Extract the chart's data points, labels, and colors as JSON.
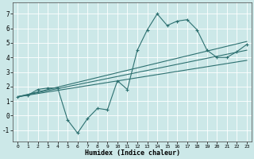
{
  "xlabel": "Humidex (Indice chaleur)",
  "bg_color": "#cce8e8",
  "grid_color": "#ffffff",
  "line_color": "#2d7070",
  "xlim": [
    -0.5,
    23.5
  ],
  "ylim": [
    -1.8,
    7.8
  ],
  "xticks": [
    0,
    1,
    2,
    3,
    4,
    5,
    6,
    7,
    8,
    9,
    10,
    11,
    12,
    13,
    14,
    15,
    16,
    17,
    18,
    19,
    20,
    21,
    22,
    23
  ],
  "yticks": [
    -1,
    0,
    1,
    2,
    3,
    4,
    5,
    6,
    7
  ],
  "line1_x": [
    0,
    1,
    2,
    3,
    4,
    5,
    6,
    7,
    8,
    9,
    10,
    11,
    12,
    13,
    14,
    15,
    16,
    17,
    18,
    19,
    20,
    21,
    22,
    23
  ],
  "line1_y": [
    1.3,
    1.4,
    1.8,
    1.9,
    1.9,
    -0.3,
    -1.2,
    -0.2,
    0.5,
    0.4,
    2.4,
    1.8,
    4.5,
    5.9,
    7.0,
    6.2,
    6.5,
    6.6,
    5.9,
    4.5,
    4.0,
    4.0,
    4.4,
    4.9
  ],
  "line2_x": [
    0,
    23
  ],
  "line2_y": [
    1.3,
    5.1
  ],
  "line3_x": [
    0,
    23
  ],
  "line3_y": [
    1.3,
    4.5
  ],
  "line4_x": [
    0,
    23
  ],
  "line4_y": [
    1.3,
    3.8
  ]
}
